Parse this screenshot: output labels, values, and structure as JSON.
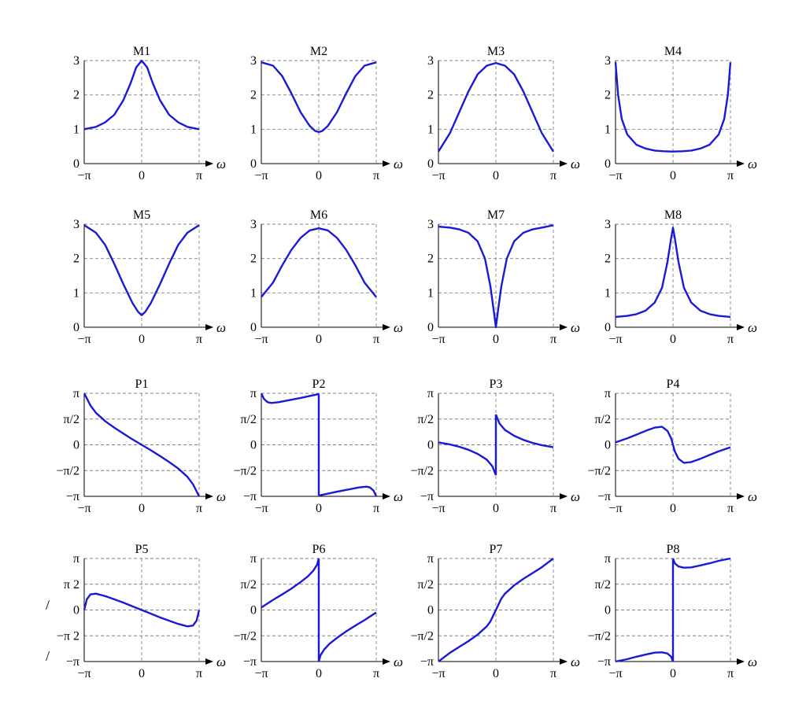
{
  "chart_data": [
    {
      "id": "M1",
      "title": "M1",
      "type": "line",
      "kind": "magnitude",
      "x_label": "ω",
      "x_ticks": [
        "−π",
        "0",
        "π"
      ],
      "y_ticks": [
        "0",
        "1",
        "2",
        "3"
      ],
      "ylim": [
        0,
        3
      ],
      "xlim": [
        -3.1416,
        3.1416
      ],
      "series": [
        {
          "x": [
            -3.14,
            -2.5,
            -2.0,
            -1.5,
            -1.0,
            -0.6,
            -0.3,
            0,
            0.3,
            0.6,
            1.0,
            1.5,
            2.0,
            2.5,
            3.14
          ],
          "y": [
            1.0,
            1.07,
            1.2,
            1.42,
            1.85,
            2.35,
            2.8,
            3.0,
            2.8,
            2.35,
            1.85,
            1.42,
            1.2,
            1.07,
            1.0
          ]
        }
      ]
    },
    {
      "id": "M2",
      "title": "M2",
      "type": "line",
      "kind": "magnitude",
      "x_label": "ω",
      "x_ticks": [
        "−π",
        "0",
        "π"
      ],
      "y_ticks": [
        "0",
        "1",
        "2",
        "3"
      ],
      "ylim": [
        0,
        3
      ],
      "xlim": [
        -3.1416,
        3.1416
      ],
      "series": [
        {
          "x": [
            -3.14,
            -2.5,
            -2.0,
            -1.5,
            -1.0,
            -0.5,
            -0.2,
            0,
            0.2,
            0.5,
            1.0,
            1.5,
            2.0,
            2.5,
            3.14
          ],
          "y": [
            2.95,
            2.85,
            2.55,
            2.05,
            1.5,
            1.1,
            0.95,
            0.92,
            0.95,
            1.1,
            1.5,
            2.05,
            2.55,
            2.85,
            2.95
          ]
        }
      ]
    },
    {
      "id": "M3",
      "title": "M3",
      "type": "line",
      "kind": "magnitude",
      "x_label": "ω",
      "x_ticks": [
        "−π",
        "0",
        "π"
      ],
      "y_ticks": [
        "0",
        "1",
        "2",
        "3"
      ],
      "ylim": [
        0,
        3
      ],
      "xlim": [
        -3.1416,
        3.1416
      ],
      "series": [
        {
          "x": [
            -3.14,
            -2.5,
            -2.0,
            -1.5,
            -1.0,
            -0.5,
            0,
            0.5,
            1.0,
            1.5,
            2.0,
            2.5,
            3.14
          ],
          "y": [
            0.35,
            0.9,
            1.5,
            2.1,
            2.6,
            2.85,
            2.93,
            2.85,
            2.6,
            2.1,
            1.5,
            0.9,
            0.35
          ]
        }
      ]
    },
    {
      "id": "M4",
      "title": "M4",
      "type": "line",
      "kind": "magnitude",
      "x_label": "ω",
      "x_ticks": [
        "−π",
        "0",
        "π"
      ],
      "y_ticks": [
        "0",
        "1",
        "2",
        "3"
      ],
      "ylim": [
        0,
        3
      ],
      "xlim": [
        -3.1416,
        3.1416
      ],
      "series": [
        {
          "x": [
            -3.14,
            -3.0,
            -2.8,
            -2.5,
            -2.0,
            -1.5,
            -1.0,
            -0.5,
            0,
            0.5,
            1.0,
            1.5,
            2.0,
            2.5,
            2.8,
            3.0,
            3.14
          ],
          "y": [
            2.95,
            2.0,
            1.3,
            0.85,
            0.55,
            0.44,
            0.38,
            0.36,
            0.35,
            0.36,
            0.38,
            0.44,
            0.55,
            0.85,
            1.3,
            2.0,
            2.95
          ]
        }
      ]
    },
    {
      "id": "M5",
      "title": "M5",
      "type": "line",
      "kind": "magnitude",
      "x_label": "ω",
      "x_ticks": [
        "−π",
        "0",
        "π"
      ],
      "y_ticks": [
        "0",
        "1",
        "2",
        "3"
      ],
      "ylim": [
        0,
        3
      ],
      "xlim": [
        -3.1416,
        3.1416
      ],
      "series": [
        {
          "x": [
            -3.14,
            -2.5,
            -2.0,
            -1.5,
            -1.0,
            -0.5,
            -0.2,
            0,
            0.2,
            0.5,
            1.0,
            1.5,
            2.0,
            2.5,
            3.14
          ],
          "y": [
            2.97,
            2.75,
            2.4,
            1.85,
            1.25,
            0.7,
            0.45,
            0.35,
            0.45,
            0.7,
            1.25,
            1.85,
            2.4,
            2.75,
            2.97
          ]
        }
      ]
    },
    {
      "id": "M6",
      "title": "M6",
      "type": "line",
      "kind": "magnitude",
      "x_label": "ω",
      "x_ticks": [
        "−π",
        "0",
        "π"
      ],
      "y_ticks": [
        "0",
        "1",
        "2",
        "3"
      ],
      "ylim": [
        0,
        3
      ],
      "xlim": [
        -3.1416,
        3.1416
      ],
      "series": [
        {
          "x": [
            -3.14,
            -2.5,
            -2.0,
            -1.5,
            -1.0,
            -0.5,
            0,
            0.5,
            1.0,
            1.5,
            2.0,
            2.5,
            3.14
          ],
          "y": [
            0.88,
            1.3,
            1.8,
            2.25,
            2.6,
            2.82,
            2.88,
            2.82,
            2.6,
            2.25,
            1.8,
            1.3,
            0.88
          ]
        }
      ]
    },
    {
      "id": "M7",
      "title": "M7",
      "type": "line",
      "kind": "magnitude",
      "x_label": "ω",
      "x_ticks": [
        "−π",
        "0",
        "π"
      ],
      "y_ticks": [
        "0",
        "1",
        "2",
        "3"
      ],
      "ylim": [
        0,
        3
      ],
      "xlim": [
        -3.1416,
        3.1416
      ],
      "series": [
        {
          "x": [
            -3.14,
            -2.5,
            -2.0,
            -1.5,
            -1.0,
            -0.6,
            -0.3,
            -0.12,
            0,
            0.12,
            0.3,
            0.6,
            1.0,
            1.5,
            2.0,
            2.5,
            3.14
          ],
          "y": [
            2.93,
            2.9,
            2.85,
            2.75,
            2.5,
            2.0,
            1.2,
            0.5,
            0.0,
            0.5,
            1.2,
            2.0,
            2.5,
            2.75,
            2.85,
            2.9,
            2.97
          ]
        }
      ]
    },
    {
      "id": "M8",
      "title": "M8",
      "type": "line",
      "kind": "magnitude",
      "x_label": "ω",
      "x_ticks": [
        "−π",
        "0",
        "π"
      ],
      "y_ticks": [
        "0",
        "1",
        "2",
        "3"
      ],
      "ylim": [
        0,
        3
      ],
      "xlim": [
        -3.1416,
        3.1416
      ],
      "series": [
        {
          "x": [
            -3.14,
            -2.5,
            -2.0,
            -1.5,
            -1.0,
            -0.6,
            -0.3,
            -0.1,
            0,
            0.1,
            0.3,
            0.6,
            1.0,
            1.5,
            2.0,
            2.5,
            3.14
          ],
          "y": [
            0.3,
            0.33,
            0.38,
            0.48,
            0.72,
            1.15,
            1.9,
            2.6,
            2.9,
            2.6,
            1.9,
            1.15,
            0.72,
            0.48,
            0.38,
            0.33,
            0.3
          ]
        }
      ]
    },
    {
      "id": "P1",
      "title": "P1",
      "type": "line",
      "kind": "phase",
      "x_label": "ω",
      "x_ticks": [
        "−π",
        "0",
        "π"
      ],
      "y_ticks": [
        "−π",
        "−π/2",
        "0",
        "π/2",
        "π"
      ],
      "ylim": [
        -3.1416,
        3.1416
      ],
      "xlim": [
        -3.1416,
        3.1416
      ],
      "series": [
        {
          "x": [
            -3.14,
            -2.8,
            -2.5,
            -2.0,
            -1.5,
            -1.0,
            -0.5,
            0,
            0.5,
            1.0,
            1.5,
            2.0,
            2.5,
            2.8,
            3.14
          ],
          "y": [
            3.14,
            2.4,
            1.95,
            1.45,
            1.05,
            0.68,
            0.33,
            0.0,
            -0.33,
            -0.68,
            -1.05,
            -1.45,
            -1.95,
            -2.4,
            -3.14
          ]
        }
      ]
    },
    {
      "id": "P2",
      "title": "P2",
      "type": "line",
      "kind": "phase",
      "x_label": "ω",
      "x_ticks": [
        "−π",
        "0",
        "π"
      ],
      "y_ticks": [
        "−π",
        "−π/2",
        "0",
        "π/2",
        "π"
      ],
      "ylim": [
        -3.1416,
        3.1416
      ],
      "xlim": [
        -3.1416,
        3.1416
      ],
      "series": [
        {
          "x": [
            -3.14,
            -3.0,
            -2.8,
            -2.6,
            -2.2,
            -1.5,
            -1.0,
            -0.5,
            0
          ],
          "y": [
            3.14,
            2.8,
            2.6,
            2.55,
            2.6,
            2.75,
            2.86,
            2.98,
            3.1
          ]
        },
        {
          "x": [
            0,
            0.5,
            1.0,
            1.5,
            2.2,
            2.6,
            2.8,
            3.0,
            3.14
          ],
          "y": [
            -3.1,
            -2.98,
            -2.86,
            -2.75,
            -2.6,
            -2.55,
            -2.6,
            -2.8,
            -3.14
          ]
        }
      ]
    },
    {
      "id": "P3",
      "title": "P3",
      "type": "line",
      "kind": "phase",
      "x_label": "ω",
      "x_ticks": [
        "−π",
        "0",
        "π"
      ],
      "y_ticks": [
        "−π",
        "−π/2",
        "0",
        "π/2",
        "π"
      ],
      "ylim": [
        -3.1416,
        3.1416
      ],
      "xlim": [
        -3.1416,
        3.1416
      ],
      "series": [
        {
          "x": [
            -3.14,
            -2.5,
            -2.0,
            -1.5,
            -1.0,
            -0.5,
            -0.2,
            0
          ],
          "y": [
            0.15,
            0.02,
            -0.12,
            -0.3,
            -0.55,
            -0.9,
            -1.3,
            -1.85
          ]
        },
        {
          "x": [
            0,
            0.2,
            0.5,
            1.0,
            1.5,
            2.0,
            2.5,
            3.14
          ],
          "y": [
            1.85,
            1.3,
            0.9,
            0.55,
            0.3,
            0.12,
            -0.02,
            -0.15
          ]
        }
      ]
    },
    {
      "id": "P4",
      "title": "P4",
      "type": "line",
      "kind": "phase",
      "x_label": "ω",
      "x_ticks": [
        "−π",
        "0",
        "π"
      ],
      "y_ticks": [
        "−π",
        "−π/2",
        "0",
        "π/2",
        "π"
      ],
      "ylim": [
        -3.1416,
        3.1416
      ],
      "xlim": [
        -3.1416,
        3.1416
      ],
      "series": [
        {
          "x": [
            -3.14,
            -2.5,
            -2.0,
            -1.5,
            -1.0,
            -0.6,
            -0.3,
            -0.1,
            0,
            0.1,
            0.3,
            0.6,
            1.0,
            1.5,
            2.0,
            2.5,
            3.14
          ],
          "y": [
            0.15,
            0.4,
            0.62,
            0.85,
            1.05,
            1.1,
            0.85,
            0.4,
            0.0,
            -0.4,
            -0.85,
            -1.1,
            -1.05,
            -0.85,
            -0.62,
            -0.4,
            -0.15
          ]
        }
      ]
    },
    {
      "id": "P5",
      "title": "P5",
      "type": "line",
      "kind": "phase",
      "x_label": "ω",
      "x_ticks": [
        "−π",
        "0",
        "π"
      ],
      "y_ticks": [
        "−π",
        "−π 2",
        "0",
        "π 2",
        "π"
      ],
      "ylim": [
        -3.1416,
        3.1416
      ],
      "xlim": [
        -3.1416,
        3.1416
      ],
      "series": [
        {
          "x": [
            -3.14,
            -3.0,
            -2.8,
            -2.5,
            -2.0,
            -1.5,
            -1.0,
            -0.5,
            0,
            0.5,
            1.0,
            1.5,
            2.0,
            2.5,
            2.8,
            3.0,
            3.14
          ],
          "y": [
            0.0,
            0.65,
            0.95,
            1.0,
            0.85,
            0.65,
            0.45,
            0.22,
            0.0,
            -0.22,
            -0.45,
            -0.65,
            -0.85,
            -1.0,
            -0.95,
            -0.65,
            0.0
          ]
        }
      ]
    },
    {
      "id": "P6",
      "title": "P6",
      "type": "line",
      "kind": "phase",
      "x_label": "ω",
      "x_ticks": [
        "−π",
        "0",
        "π"
      ],
      "y_ticks": [
        "−π",
        "−π/2",
        "0",
        "π/2",
        "π"
      ],
      "ylim": [
        -3.1416,
        3.1416
      ],
      "xlim": [
        -3.1416,
        3.1416
      ],
      "series": [
        {
          "x": [
            -3.14,
            -2.5,
            -2.0,
            -1.5,
            -1.0,
            -0.6,
            -0.3,
            -0.1,
            0
          ],
          "y": [
            0.15,
            0.62,
            0.95,
            1.3,
            1.7,
            2.05,
            2.4,
            2.75,
            3.14
          ]
        },
        {
          "x": [
            0,
            0.1,
            0.3,
            0.6,
            1.0,
            1.5,
            2.0,
            2.5,
            3.14
          ],
          "y": [
            -3.14,
            -2.75,
            -2.4,
            -2.05,
            -1.7,
            -1.3,
            -0.95,
            -0.62,
            -0.15
          ]
        }
      ]
    },
    {
      "id": "P7",
      "title": "P7",
      "type": "line",
      "kind": "phase",
      "x_label": "ω",
      "x_ticks": [
        "−π",
        "0",
        "π"
      ],
      "y_ticks": [
        "−π",
        "−π/2",
        "0",
        "π/2",
        "π"
      ],
      "ylim": [
        -3.1416,
        3.1416
      ],
      "xlim": [
        -3.1416,
        3.1416
      ],
      "series": [
        {
          "x": [
            -3.14,
            -2.5,
            -2.0,
            -1.5,
            -1.0,
            -0.5,
            -0.3,
            -0.15,
            0,
            0.15,
            0.3,
            0.5,
            1.0,
            1.5,
            2.0,
            2.5,
            3.14
          ],
          "y": [
            -3.14,
            -2.6,
            -2.25,
            -1.9,
            -1.5,
            -1.0,
            -0.7,
            -0.35,
            0.0,
            0.35,
            0.7,
            1.0,
            1.5,
            1.9,
            2.25,
            2.6,
            3.14
          ]
        }
      ]
    },
    {
      "id": "P8",
      "title": "P8",
      "type": "line",
      "kind": "phase",
      "x_label": "ω",
      "x_ticks": [
        "−π",
        "0",
        "π"
      ],
      "y_ticks": [
        "−π",
        "−π/2",
        "0",
        "π/2",
        "π"
      ],
      "ylim": [
        -3.1416,
        3.1416
      ],
      "xlim": [
        -3.1416,
        3.1416
      ],
      "series": [
        {
          "x": [
            -3.14,
            -2.5,
            -2.0,
            -1.5,
            -1.0,
            -0.6,
            -0.3,
            -0.1,
            0
          ],
          "y": [
            -3.14,
            -3.0,
            -2.85,
            -2.72,
            -2.6,
            -2.58,
            -2.65,
            -2.85,
            -3.14
          ]
        },
        {
          "x": [
            0,
            0.1,
            0.3,
            0.6,
            1.0,
            1.5,
            2.0,
            2.5,
            3.14
          ],
          "y": [
            3.14,
            2.85,
            2.65,
            2.58,
            2.6,
            2.72,
            2.85,
            3.0,
            3.14
          ]
        }
      ]
    }
  ],
  "decorations": {
    "slash_glyph": "/"
  }
}
